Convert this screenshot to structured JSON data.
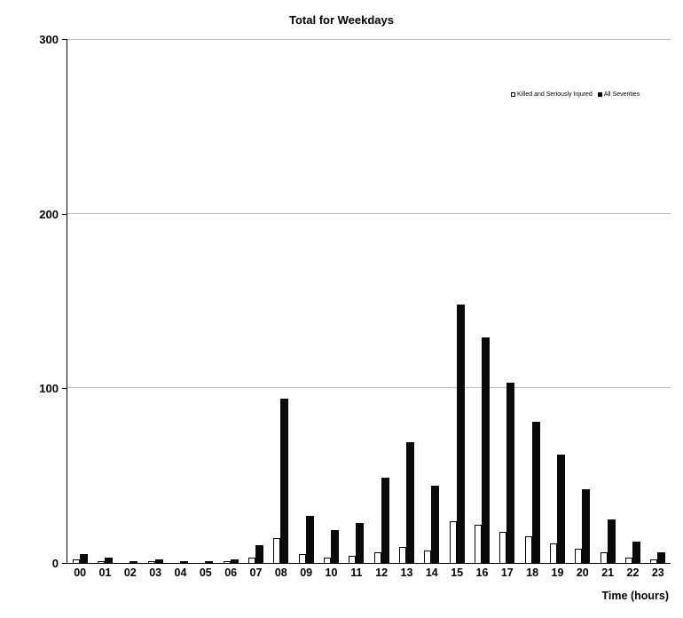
{
  "chart_data": {
    "type": "bar",
    "title": "Total for Weekdays",
    "xlabel": "Time (hours)",
    "ylabel": "",
    "ylim": [
      0,
      300
    ],
    "yticks": [
      0,
      100,
      200,
      300
    ],
    "grid": true,
    "legend_position": "top-right-inside",
    "categories": [
      "00",
      "01",
      "02",
      "03",
      "04",
      "05",
      "06",
      "07",
      "08",
      "09",
      "10",
      "11",
      "12",
      "13",
      "14",
      "15",
      "16",
      "17",
      "18",
      "19",
      "20",
      "21",
      "22",
      "23"
    ],
    "series": [
      {
        "key": "ksi",
        "name": "Killed and Seriously Injured",
        "color": "#ffffff",
        "border_color": "#000000",
        "values": [
          2,
          1,
          0,
          1,
          0,
          0,
          1,
          3,
          14,
          5,
          3,
          4,
          6,
          9,
          7,
          24,
          22,
          18,
          15,
          11,
          8,
          6,
          3,
          2
        ]
      },
      {
        "key": "all",
        "name": "All Severities",
        "color": "#000000",
        "border_color": "#000000",
        "values": [
          5,
          3,
          1,
          2,
          1,
          1,
          2,
          10,
          94,
          27,
          19,
          23,
          49,
          69,
          44,
          148,
          129,
          103,
          81,
          62,
          42,
          25,
          12,
          6
        ]
      }
    ]
  }
}
